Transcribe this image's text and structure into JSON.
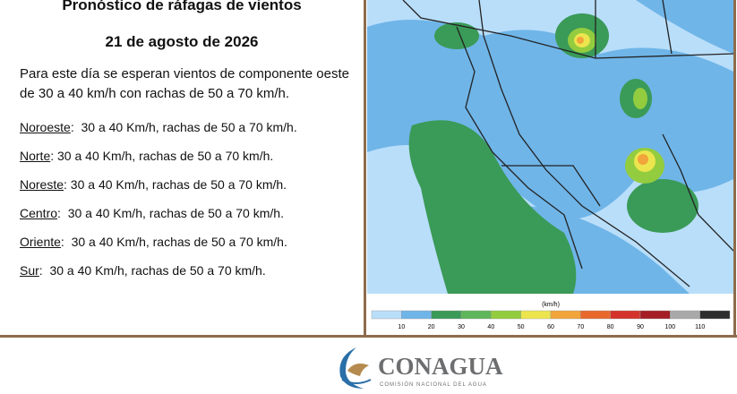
{
  "header": {
    "title": "Pronóstico de ráfagas de vientos",
    "date": "21 de agosto de 2026"
  },
  "summary": "Para este día se esperan vientos de componente oeste de 30 a 40 km/h con rachas de 50 a 70 km/h.",
  "regions": [
    {
      "name": "Noroeste",
      "text": ":  30 a 40 Km/h, rachas de 50 a 70 km/h."
    },
    {
      "name": "Norte",
      "text": ": 30 a 40 Km/h, rachas de 50 a 70 km/h."
    },
    {
      "name": "Noreste",
      "text": ": 30 a 40 Km/h, rachas de 50 a 70 km/h."
    },
    {
      "name": "Centro",
      "text": ":  30 a 40 Km/h, rachas de 50 a 70 km/h."
    },
    {
      "name": "Oriente",
      "text": ":  30 a 40 Km/h, rachas de 50 a 70 km/h."
    },
    {
      "name": "Sur",
      "text": ":  30 a 40 Km/h, rachas de 50 a 70 km/h."
    }
  ],
  "legend": {
    "unit": "(km/h)",
    "labels": [
      10,
      20,
      30,
      40,
      50,
      60,
      70,
      80,
      90,
      100,
      110
    ],
    "colors": [
      "#f4f9fd",
      "#b9defa",
      "#6fb5e8",
      "#3a9a57",
      "#5fb65a",
      "#93cc3f",
      "#ece54e",
      "#f2a53a",
      "#e8682c",
      "#d3332b",
      "#a51d25",
      "#a9a9a9",
      "#2e2e2e"
    ]
  },
  "logo": {
    "name": "CONAGUA",
    "subtitle": "COMISIÓN NACIONAL DEL AGUA"
  }
}
